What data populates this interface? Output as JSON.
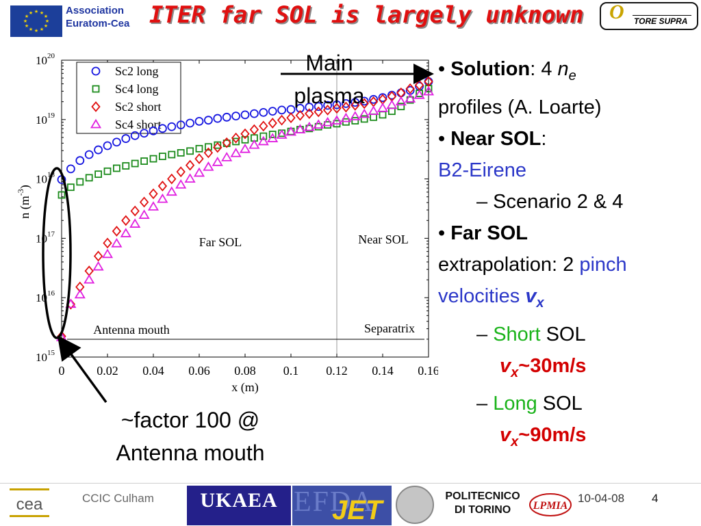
{
  "header": {
    "org_line1": "Association",
    "org_line2": "Euratom-Cea",
    "title": "ITER far SOL is largely unknown",
    "logo_right": "TORE SUPRA",
    "eu_flag_color": "#1c3f9a",
    "title_color": "#e01010"
  },
  "annotations": {
    "main_plasma_line1": "Main",
    "main_plasma_line2": "plasma",
    "factor_line1": "~factor 100 @",
    "factor_line2": "Antenna mouth"
  },
  "bullets": {
    "b1_bold": "Solution",
    "b1_rest": ": 4 ",
    "b1_n": "n",
    "b1_sub": "e",
    "b1_line2": "profiles (A. Loarte)",
    "b2_bold": "Near SOL",
    "b2_colon": ":",
    "b2_code": "B2-Eirene",
    "b2_sub": "– Scenario 2 & 4",
    "b3_bold": "Far SOL",
    "b3_l2a": "extrapolation: 2 ",
    "b3_l2b": "pinch",
    "b3_l3": "velocities ",
    "b3_v": "v",
    "b3_vsub": "x",
    "short_dash": "– ",
    "short_word": "Short",
    "short_rest": " SOL",
    "short_v": "v",
    "short_vsub": "x",
    "short_val": "~30m/s",
    "long_dash": "– ",
    "long_word": "Long",
    "long_rest": " SOL",
    "long_v": "v",
    "long_vsub": "x",
    "long_val": "~90m/s"
  },
  "footer": {
    "event": "CCIC Culham",
    "date": "10-04-08",
    "page": "4",
    "ukaea": "UKAEA",
    "efda": "EFDA",
    "jet": "JET",
    "polito_line1": "POLITECNICO",
    "polito_line2": "DI TORINO",
    "lpmia": "LPMIA",
    "cea": "cea"
  },
  "chart_data": {
    "type": "scatter",
    "xlabel": "x (m)",
    "ylabel_base": "n (m",
    "ylabel_exp": "-3",
    "ylabel_close": ")",
    "xlim": [
      0,
      0.16
    ],
    "ylim_log10": [
      15,
      20
    ],
    "y_scale": "log",
    "x_ticks": [
      "0",
      "0.02",
      "0.04",
      "0.06",
      "0.08",
      "0.1",
      "0.12",
      "0.14",
      "0.16"
    ],
    "x_tick_values": [
      0,
      0.02,
      0.04,
      0.06,
      0.08,
      0.1,
      0.12,
      0.14,
      0.16
    ],
    "y_ticks": [
      {
        "base": "10",
        "exp": "20",
        "log": 20
      },
      {
        "base": "10",
        "exp": "19",
        "log": 19
      },
      {
        "base": "10",
        "exp": "18",
        "log": 18
      },
      {
        "base": "10",
        "exp": "17",
        "log": 17
      },
      {
        "base": "10",
        "exp": "16",
        "log": 16
      },
      {
        "base": "10",
        "exp": "15",
        "log": 15
      }
    ],
    "separatrix_x": 0.12,
    "region_labels": {
      "far": "Far SOL",
      "near": "Near SOL",
      "antenna": "Antenna mouth",
      "separatrix": "Separatrix"
    },
    "legend_position": "top-left",
    "x": [
      0,
      0.004,
      0.008,
      0.012,
      0.016,
      0.02,
      0.024,
      0.028,
      0.032,
      0.036,
      0.04,
      0.044,
      0.048,
      0.052,
      0.056,
      0.06,
      0.064,
      0.068,
      0.072,
      0.076,
      0.08,
      0.084,
      0.088,
      0.092,
      0.096,
      0.1,
      0.104,
      0.108,
      0.112,
      0.116,
      0.12,
      0.124,
      0.128,
      0.132,
      0.136,
      0.14,
      0.144,
      0.148,
      0.152,
      0.156,
      0.16
    ],
    "series": [
      {
        "name": "Sc2 long",
        "marker": "circle",
        "color": "#1515e0",
        "values_log10": [
          17.99,
          18.17,
          18.31,
          18.41,
          18.49,
          18.56,
          18.62,
          18.68,
          18.73,
          18.77,
          18.81,
          18.85,
          18.88,
          18.91,
          18.94,
          18.97,
          18.99,
          19.02,
          19.04,
          19.06,
          19.08,
          19.1,
          19.12,
          19.14,
          19.16,
          19.17,
          19.19,
          19.21,
          19.22,
          19.24,
          19.25,
          19.27,
          19.29,
          19.31,
          19.34,
          19.37,
          19.41,
          19.45,
          19.49,
          19.56,
          19.64
        ]
      },
      {
        "name": "Sc4 long",
        "marker": "square",
        "color": "#1a8a1a",
        "values_log10": [
          17.73,
          17.86,
          17.95,
          18.02,
          18.08,
          18.13,
          18.18,
          18.22,
          18.26,
          18.3,
          18.34,
          18.38,
          18.41,
          18.44,
          18.47,
          18.51,
          18.54,
          18.57,
          18.6,
          18.63,
          18.66,
          18.69,
          18.72,
          18.75,
          18.77,
          18.8,
          18.83,
          18.85,
          18.88,
          18.91,
          18.93,
          18.96,
          18.98,
          19.01,
          19.04,
          19.08,
          19.14,
          19.22,
          19.33,
          19.44,
          19.52
        ]
      },
      {
        "name": "Sc2 short",
        "marker": "diamond",
        "color": "#e01010",
        "values_log10": [
          15.35,
          15.89,
          16.18,
          16.45,
          16.7,
          16.92,
          17.12,
          17.3,
          17.46,
          17.61,
          17.75,
          17.88,
          18.0,
          18.12,
          18.23,
          18.34,
          18.44,
          18.53,
          18.61,
          18.69,
          18.76,
          18.83,
          18.89,
          18.94,
          18.99,
          19.03,
          19.07,
          19.1,
          19.13,
          19.16,
          19.19,
          19.21,
          19.24,
          19.27,
          19.3,
          19.34,
          19.39,
          19.45,
          19.52,
          19.58,
          19.64
        ]
      },
      {
        "name": "Sc4 short",
        "marker": "triangle",
        "color": "#e020e0",
        "values_log10": [
          15.33,
          15.89,
          16.05,
          16.3,
          16.52,
          16.73,
          16.91,
          17.08,
          17.24,
          17.39,
          17.53,
          17.66,
          17.78,
          17.9,
          18.0,
          18.1,
          18.2,
          18.28,
          18.36,
          18.43,
          18.5,
          18.57,
          18.63,
          18.68,
          18.74,
          18.79,
          18.83,
          18.87,
          18.91,
          18.95,
          18.98,
          19.02,
          19.05,
          19.09,
          19.14,
          19.19,
          19.24,
          19.3,
          19.35,
          19.41,
          19.47
        ]
      }
    ]
  }
}
